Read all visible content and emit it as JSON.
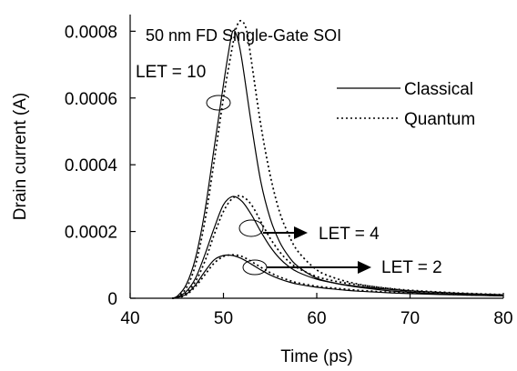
{
  "chart_data": {
    "type": "line",
    "title": "50 nm FD Single-Gate SOI",
    "xlabel": "Time (ps)",
    "ylabel": "Drain current (A)",
    "xlim": [
      40,
      80
    ],
    "ylim": [
      0,
      0.0009
    ],
    "x_ticks": [
      "40",
      "50",
      "60",
      "70",
      "80"
    ],
    "y_ticks": [
      "0",
      "0.0002",
      "0.0004",
      "0.0006",
      "0.0008"
    ],
    "legend": {
      "placement": "top-right",
      "entries": [
        {
          "label": "Classical",
          "style": "solid"
        },
        {
          "label": "Quantum",
          "style": "dotted"
        }
      ]
    },
    "annotations": [
      {
        "label": "LET = 10",
        "series_group": "LET10"
      },
      {
        "label": "LET = 4",
        "series_group": "LET4"
      },
      {
        "label": "LET = 2",
        "series_group": "LET2"
      }
    ],
    "series": [
      {
        "name": "Classical",
        "group": "LET10",
        "style": "solid",
        "x": [
          44.5,
          45,
          46,
          47,
          48,
          49,
          50,
          50.5,
          51,
          51.5,
          52,
          53,
          54,
          55,
          56,
          57,
          58,
          60,
          62,
          64,
          66,
          68,
          70,
          75,
          80
        ],
        "y": [
          0,
          5e-06,
          4e-05,
          0.00012,
          0.00026,
          0.00045,
          0.00064,
          0.00073,
          0.0008,
          0.00078,
          0.00071,
          0.00052,
          0.00035,
          0.00024,
          0.00017,
          0.000125,
          9.5e-05,
          6e-05,
          4.5e-05,
          3.5e-05,
          2.8e-05,
          2.2e-05,
          1.8e-05,
          1.1e-05,
          7e-06
        ]
      },
      {
        "name": "Quantum",
        "group": "LET10",
        "style": "dotted",
        "x": [
          44.5,
          45,
          46,
          47,
          48,
          49,
          50,
          51,
          51.5,
          52,
          52.5,
          53,
          54,
          55,
          56,
          57,
          58,
          60,
          62,
          64,
          66,
          68,
          70,
          75,
          80
        ],
        "y": [
          0,
          4e-06,
          3e-05,
          0.0001,
          0.00023,
          0.00041,
          0.0006,
          0.00076,
          0.00082,
          0.00083,
          0.0008,
          0.00071,
          0.00052,
          0.00037,
          0.00026,
          0.00019,
          0.00014,
          8.5e-05,
          6e-05,
          4.5e-05,
          3.5e-05,
          2.8e-05,
          2.2e-05,
          1.4e-05,
          1e-05
        ]
      },
      {
        "name": "Classical",
        "group": "LET4",
        "style": "solid",
        "x": [
          44.5,
          45,
          46,
          47,
          48,
          49,
          50,
          51,
          52,
          53,
          54,
          55,
          56,
          57,
          58,
          60,
          62,
          64,
          66,
          68,
          70,
          75,
          80
        ],
        "y": [
          0,
          3e-06,
          2e-05,
          6e-05,
          0.00013,
          0.00021,
          0.00028,
          0.000305,
          0.00029,
          0.00025,
          0.0002,
          0.000155,
          0.00012,
          9.5e-05,
          7.8e-05,
          5.7e-05,
          4.5e-05,
          3.7e-05,
          3.1e-05,
          2.6e-05,
          2.2e-05,
          1.5e-05,
          1e-05
        ]
      },
      {
        "name": "Quantum",
        "group": "LET4",
        "style": "dotted",
        "x": [
          44.5,
          45,
          46,
          47,
          48,
          49,
          50,
          51,
          52,
          53,
          54,
          55,
          56,
          57,
          58,
          60,
          62,
          64,
          66,
          68,
          70,
          75,
          80
        ],
        "y": [
          0,
          2e-06,
          1.5e-05,
          5e-05,
          0.00011,
          0.00019,
          0.00026,
          0.0003,
          0.000305,
          0.00028,
          0.00023,
          0.00018,
          0.00014,
          0.00011,
          9e-05,
          6.5e-05,
          5.1e-05,
          4.2e-05,
          3.5e-05,
          2.9e-05,
          2.4e-05,
          1.6e-05,
          1.1e-05
        ]
      },
      {
        "name": "Classical",
        "group": "LET2",
        "style": "solid",
        "x": [
          44.5,
          45,
          46,
          47,
          48,
          49,
          50,
          51,
          52,
          53,
          54,
          55,
          56,
          57,
          58,
          60,
          62,
          64,
          66,
          68,
          70,
          75,
          80
        ],
        "y": [
          0,
          2e-06,
          1.2e-05,
          4e-05,
          8e-05,
          0.000115,
          0.000128,
          0.000128,
          0.000118,
          0.000102,
          8.5e-05,
          7e-05,
          5.8e-05,
          4.9e-05,
          4.2e-05,
          3.3e-05,
          2.7e-05,
          2.2e-05,
          1.9e-05,
          1.6e-05,
          1.4e-05,
          1e-05,
          7e-06
        ]
      },
      {
        "name": "Quantum",
        "group": "LET2",
        "style": "dotted",
        "x": [
          44.5,
          45,
          46,
          47,
          48,
          49,
          50,
          51,
          52,
          53,
          54,
          55,
          56,
          57,
          58,
          60,
          62,
          64,
          66,
          68,
          70,
          75,
          80
        ],
        "y": [
          0,
          1e-06,
          1e-05,
          3.5e-05,
          7e-05,
          0.000105,
          0.000125,
          0.00013,
          0.000125,
          0.00011,
          9.3e-05,
          7.7e-05,
          6.4e-05,
          5.4e-05,
          4.6e-05,
          3.6e-05,
          3e-05,
          2.5e-05,
          2.1e-05,
          1.8e-05,
          1.6e-05,
          1.1e-05,
          8e-06
        ]
      }
    ]
  }
}
